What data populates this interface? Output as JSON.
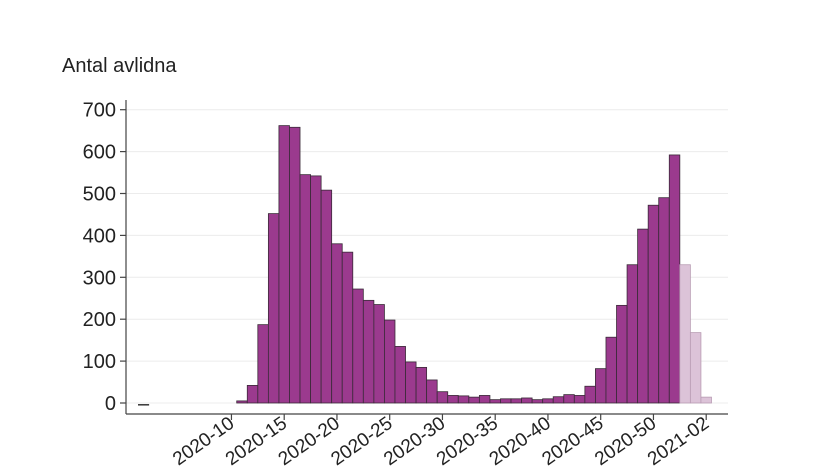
{
  "chart_data": {
    "type": "bar",
    "ylabel": "Antal avlidna",
    "ylim": [
      0,
      720
    ],
    "yticks": [
      0,
      100,
      200,
      300,
      400,
      500,
      600,
      700
    ],
    "grid": true,
    "colors": {
      "bar": "#9b3a8e",
      "bar_preliminary": "#dcc3d8",
      "bar_edge": "#3a2a38"
    },
    "weeks": [
      1,
      2,
      3,
      4,
      5,
      6,
      7,
      8,
      9,
      10,
      11,
      12,
      13,
      14,
      15,
      16,
      17,
      18,
      19,
      20,
      21,
      22,
      23,
      24,
      25,
      26,
      27,
      28,
      29,
      30,
      31,
      32,
      33,
      34,
      35,
      36,
      37,
      38,
      39,
      40,
      41,
      42,
      43,
      44,
      45,
      46,
      47,
      48,
      49,
      50,
      51,
      52,
      53,
      54,
      55,
      56
    ],
    "values": [
      0,
      0,
      0,
      0,
      0,
      0,
      0,
      0,
      0,
      0,
      5,
      42,
      187,
      452,
      662,
      658,
      545,
      542,
      508,
      380,
      360,
      272,
      245,
      235,
      198,
      135,
      98,
      85,
      55,
      27,
      18,
      17,
      14,
      18,
      8,
      10,
      10,
      12,
      8,
      10,
      15,
      20,
      18,
      40,
      82,
      157,
      233,
      330,
      415,
      472,
      490,
      592,
      330,
      168,
      14,
      0
    ],
    "preliminary_from_index": 52,
    "xtick_labels": [
      {
        "week": 10,
        "label": "2020-10"
      },
      {
        "week": 15,
        "label": "2020-15"
      },
      {
        "week": 20,
        "label": "2020-20"
      },
      {
        "week": 25,
        "label": "2020-25"
      },
      {
        "week": 30,
        "label": "2020-30"
      },
      {
        "week": 35,
        "label": "2020-35"
      },
      {
        "week": 40,
        "label": "2020-40"
      },
      {
        "week": 45,
        "label": "2020-45"
      },
      {
        "week": 50,
        "label": "2020-50"
      },
      {
        "week": 55,
        "label": "2021-02"
      }
    ],
    "missing_marker": "–"
  }
}
